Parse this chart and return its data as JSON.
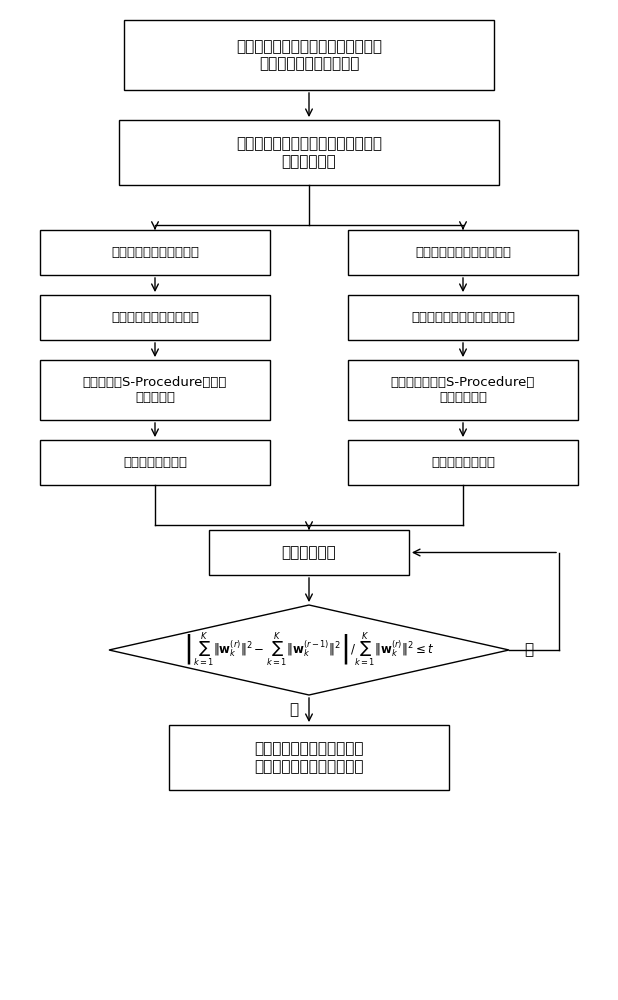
{
  "title": "智能反射面辅助多小区网络的鲁棒联\n合传输波束赋形设计方法",
  "box1": "基站波束赋形变量和智能反射面相移\n变量复杂耦合",
  "box_left1": "基站波束赋形优化子问题",
  "box_right1": "智能反射面相移优化子问题",
  "box_left2": "非凸的用户目标速率约束",
  "box_right2": "可行性检验、非凸的单模约束",
  "box_left3": "矩阵转化、S-Procedure定理、\n凸半定松弛",
  "box_right3": "目标函数转化、S-Procedure定\n理、二分算法",
  "box_left4": "转化为凸优化问题",
  "box_right4": "转化为凸优化问题",
  "box_iter": "交替迭代优化",
  "box_diamond": "$\\left|\\sum_{k=1}^{K}\\|\\mathbf{w}_k^{(r)}\\|^2-\\sum_{k=1}^{K}\\|\\mathbf{w}_k^{(r-1)}\\|^2\\right|/\\sum_{k=1}^{K}\\|\\mathbf{w}_k^{(r)}\\|^2\\leq t$",
  "box_end": "优化求得最佳的基站发射波\n束赋形和智能反射面相移解",
  "label_yes": "是",
  "label_no": "否",
  "bg_color": "#ffffff",
  "box_color": "#ffffff",
  "line_color": "#000000",
  "text_color": "#000000",
  "fontsize": 11,
  "fontsize_small": 9.5
}
